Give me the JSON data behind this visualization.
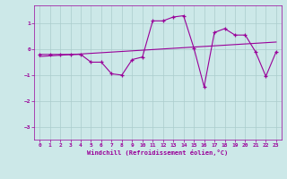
{
  "x": [
    0,
    1,
    2,
    3,
    4,
    5,
    6,
    7,
    8,
    9,
    10,
    11,
    12,
    13,
    14,
    15,
    16,
    17,
    18,
    19,
    20,
    21,
    22,
    23
  ],
  "y_line": [
    -0.2,
    -0.2,
    -0.2,
    -0.2,
    -0.2,
    -0.5,
    -0.5,
    -0.95,
    -1.0,
    -0.4,
    -0.3,
    1.1,
    1.1,
    1.25,
    1.3,
    0.05,
    -1.45,
    0.65,
    0.8,
    0.55,
    0.55,
    -0.1,
    -1.05,
    -0.1
  ],
  "line_color": "#990099",
  "bg_color": "#cce8e8",
  "grid_color": "#aacccc",
  "xlabel": "Windchill (Refroidissement éolien,°C)",
  "ylim": [
    -3.5,
    1.7
  ],
  "xlim": [
    -0.5,
    23.5
  ],
  "yticks": [
    -3,
    -2,
    -1,
    0,
    1
  ],
  "xticks": [
    0,
    1,
    2,
    3,
    4,
    5,
    6,
    7,
    8,
    9,
    10,
    11,
    12,
    13,
    14,
    15,
    16,
    17,
    18,
    19,
    20,
    21,
    22,
    23
  ],
  "trend_x": [
    0,
    23
  ],
  "trend_y": [
    -0.18,
    0.05
  ],
  "figsize": [
    3.2,
    2.0
  ],
  "dpi": 100
}
